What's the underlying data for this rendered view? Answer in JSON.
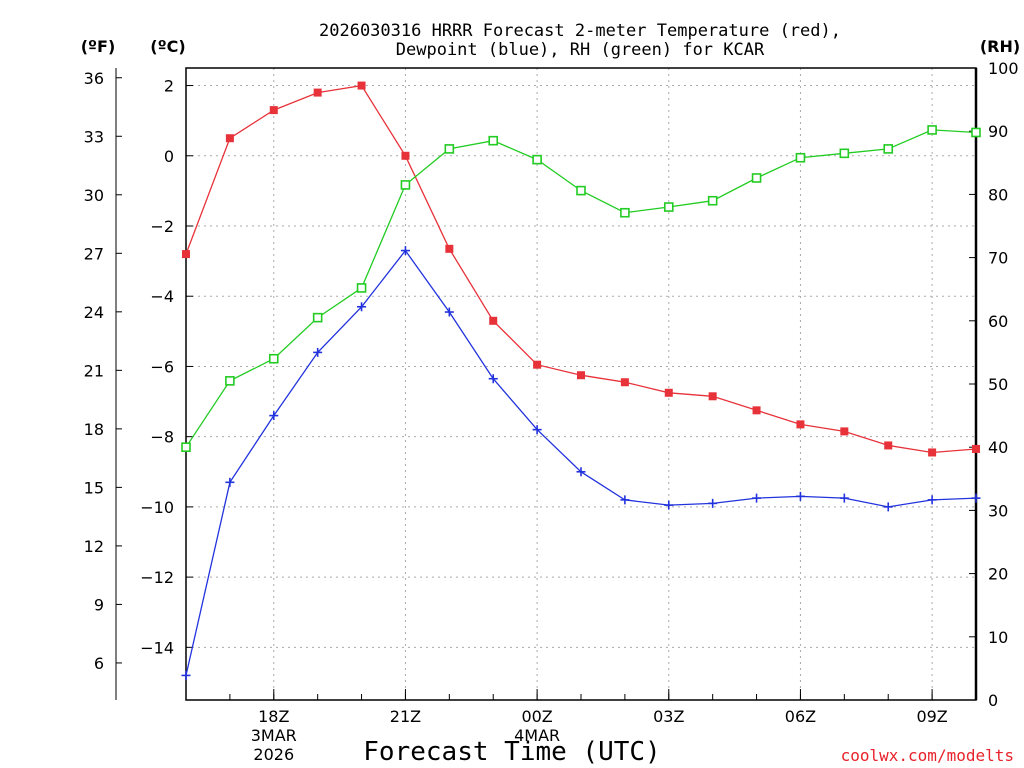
{
  "chart_data": {
    "type": "line",
    "title_line1": "2026030316 HRRR Forecast 2-meter Temperature (red),",
    "title_line2": "Dewpoint (blue), RH (green) for KCAR",
    "xlabel": "Forecast Time (UTC)",
    "credit": "coolwx.com/modelts",
    "unit_f": "(ºF)",
    "unit_c": "(ºC)",
    "unit_rh": "(RH)",
    "x_hours": [
      16,
      17,
      18,
      19,
      20,
      21,
      22,
      23,
      24,
      25,
      26,
      27,
      28,
      29,
      30,
      31,
      32,
      33,
      34
    ],
    "x_range": [
      16,
      34
    ],
    "x_ticks": [
      {
        "hour": 18,
        "label": "18Z",
        "date1": "3MAR",
        "date2": "2026"
      },
      {
        "hour": 21,
        "label": "21Z",
        "date1": "",
        "date2": ""
      },
      {
        "hour": 24,
        "label": "00Z",
        "date1": "4MAR",
        "date2": ""
      },
      {
        "hour": 27,
        "label": "03Z",
        "date1": "",
        "date2": ""
      },
      {
        "hour": 30,
        "label": "06Z",
        "date1": "",
        "date2": ""
      },
      {
        "hour": 33,
        "label": "09Z",
        "date1": "",
        "date2": ""
      }
    ],
    "ylim_c": [
      -15.5,
      2.5
    ],
    "y_ticks_c": [
      2,
      0,
      -2,
      -4,
      -6,
      -8,
      -10,
      -12,
      -14
    ],
    "y_ticks_f": [
      36,
      33,
      30,
      27,
      24,
      21,
      18,
      15,
      12,
      9,
      6
    ],
    "ylim_rh": [
      0,
      100
    ],
    "y_ticks_rh": [
      100,
      90,
      80,
      70,
      60,
      50,
      40,
      30,
      20,
      10,
      0
    ],
    "series": [
      {
        "name": "Temperature",
        "unit": "C",
        "color": "#e8323a",
        "marker": "filled-square",
        "values": [
          -2.8,
          0.5,
          1.3,
          1.8,
          2.0,
          0.0,
          -2.65,
          -4.7,
          -5.95,
          -6.25,
          -6.45,
          -6.75,
          -6.85,
          -7.25,
          -7.65,
          -7.85,
          -8.25,
          -8.45,
          -8.35
        ]
      },
      {
        "name": "Dewpoint",
        "unit": "C",
        "color": "#2233dd",
        "marker": "plus",
        "values": [
          -14.8,
          -9.3,
          -7.4,
          -5.6,
          -4.3,
          -2.7,
          -4.45,
          -6.35,
          -7.8,
          -9.0,
          -9.8,
          -9.95,
          -9.9,
          -9.75,
          -9.7,
          -9.75,
          -10.0,
          -9.8,
          -9.75
        ]
      },
      {
        "name": "RH",
        "unit": "%",
        "color": "#22cc22",
        "marker": "open-square",
        "values": [
          40.0,
          50.5,
          54.0,
          60.5,
          65.2,
          81.5,
          87.2,
          88.5,
          85.5,
          80.6,
          77.1,
          78.0,
          79.0,
          82.6,
          85.8,
          86.5,
          87.2,
          90.2,
          89.8
        ]
      }
    ]
  }
}
